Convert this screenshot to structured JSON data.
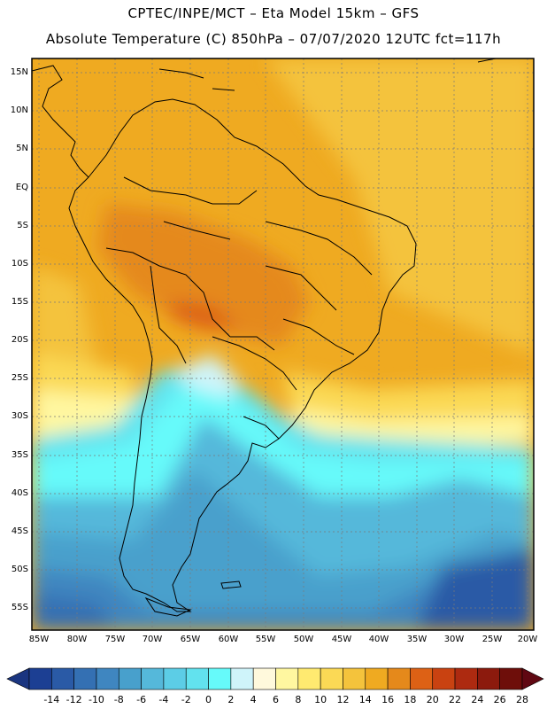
{
  "header": {
    "line1": "CPTEC/INPE/MCT –  Eta Model 15km – GFS",
    "line2": "Absolute Temperature (C) 850hPa – 07/07/2020 12UTC fct=117h"
  },
  "axes": {
    "lat_labels": [
      "15N",
      "10N",
      "5N",
      "EQ",
      "5S",
      "10S",
      "15S",
      "20S",
      "25S",
      "30S",
      "35S",
      "40S",
      "45S",
      "50S",
      "55S"
    ],
    "lon_labels": [
      "85W",
      "80W",
      "75W",
      "70W",
      "65W",
      "60W",
      "55W",
      "50W",
      "45W",
      "40W",
      "35W",
      "30W",
      "25W",
      "20W"
    ]
  },
  "colorbar": {
    "labels": [
      "-14",
      "-12",
      "-10",
      "-8",
      "-6",
      "-4",
      "-2",
      "0",
      "2",
      "4",
      "6",
      "8",
      "10",
      "12",
      "14",
      "16",
      "18",
      "20",
      "22",
      "24",
      "26",
      "28"
    ],
    "colors": [
      "#1c3f93",
      "#2a5aa6",
      "#3470b3",
      "#3f86c0",
      "#48a0cc",
      "#55b8da",
      "#5ccde6",
      "#62e2ee",
      "#66fafa",
      "#cff4fa",
      "#fff9dc",
      "#fff7a0",
      "#ffea70",
      "#fbd955",
      "#f4c33c",
      "#efaa21",
      "#e5891b",
      "#dd6115",
      "#c94211",
      "#ad2a10",
      "#8c1a0d",
      "#6e0e0a"
    ],
    "under_color": "#1a3580",
    "over_color": "#600812"
  }
}
